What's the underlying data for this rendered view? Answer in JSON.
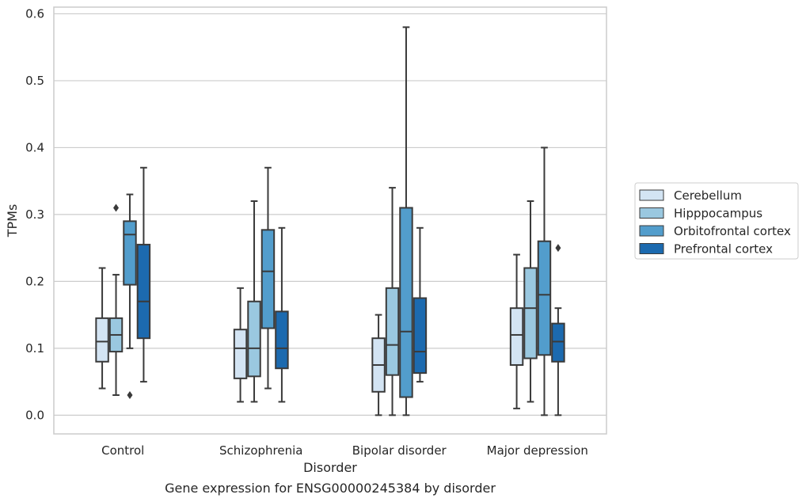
{
  "chart_data": {
    "type": "box",
    "xlabel": "Disorder",
    "ylabel": "TPMs",
    "caption": "Gene expression for ENSG00000245384 by disorder",
    "ylim": [
      -0.028,
      0.61
    ],
    "yticks": [
      "0.0",
      "0.1",
      "0.2",
      "0.3",
      "0.4",
      "0.5",
      "0.6"
    ],
    "yticks_values": [
      0.0,
      0.1,
      0.2,
      0.3,
      0.4,
      0.5,
      0.6
    ],
    "grid": "horizontal",
    "legend_position": "right",
    "categories": [
      "Control",
      "Schizophrenia",
      "Bipolar disorder",
      "Major depression"
    ],
    "series": [
      {
        "name": "Cerebellum",
        "color": "#d3e4f3",
        "boxes": [
          {
            "whislo": 0.04,
            "q1": 0.08,
            "med": 0.11,
            "q3": 0.145,
            "whishi": 0.22,
            "fliers": []
          },
          {
            "whislo": 0.02,
            "q1": 0.055,
            "med": 0.1,
            "q3": 0.128,
            "whishi": 0.19,
            "fliers": []
          },
          {
            "whislo": 0.0,
            "q1": 0.035,
            "med": 0.075,
            "q3": 0.115,
            "whishi": 0.15,
            "fliers": []
          },
          {
            "whislo": 0.01,
            "q1": 0.075,
            "med": 0.12,
            "q3": 0.16,
            "whishi": 0.24,
            "fliers": []
          }
        ]
      },
      {
        "name": "Hipppocampus",
        "color": "#9ac8e0",
        "boxes": [
          {
            "whislo": 0.03,
            "q1": 0.095,
            "med": 0.12,
            "q3": 0.145,
            "whishi": 0.21,
            "fliers": [
              0.31
            ]
          },
          {
            "whislo": 0.02,
            "q1": 0.058,
            "med": 0.1,
            "q3": 0.17,
            "whishi": 0.32,
            "fliers": []
          },
          {
            "whislo": 0.0,
            "q1": 0.06,
            "med": 0.105,
            "q3": 0.19,
            "whishi": 0.34,
            "fliers": []
          },
          {
            "whislo": 0.02,
            "q1": 0.085,
            "med": 0.16,
            "q3": 0.22,
            "whishi": 0.32,
            "fliers": []
          }
        ]
      },
      {
        "name": "Orbitofrontal cortex",
        "color": "#529dcc",
        "boxes": [
          {
            "whislo": 0.1,
            "q1": 0.195,
            "med": 0.27,
            "q3": 0.29,
            "whishi": 0.33,
            "fliers": [
              0.03
            ]
          },
          {
            "whislo": 0.04,
            "q1": 0.13,
            "med": 0.215,
            "q3": 0.277,
            "whishi": 0.37,
            "fliers": []
          },
          {
            "whislo": 0.0,
            "q1": 0.027,
            "med": 0.125,
            "q3": 0.31,
            "whishi": 0.58,
            "fliers": []
          },
          {
            "whislo": 0.0,
            "q1": 0.09,
            "med": 0.18,
            "q3": 0.26,
            "whishi": 0.4,
            "fliers": []
          }
        ]
      },
      {
        "name": "Prefrontal cortex",
        "color": "#1c6aaf",
        "boxes": [
          {
            "whislo": 0.05,
            "q1": 0.115,
            "med": 0.17,
            "q3": 0.255,
            "whishi": 0.37,
            "fliers": []
          },
          {
            "whislo": 0.02,
            "q1": 0.07,
            "med": 0.1,
            "q3": 0.155,
            "whishi": 0.28,
            "fliers": []
          },
          {
            "whislo": 0.05,
            "q1": 0.063,
            "med": 0.095,
            "q3": 0.175,
            "whishi": 0.28,
            "fliers": []
          },
          {
            "whislo": 0.0,
            "q1": 0.08,
            "med": 0.11,
            "q3": 0.137,
            "whishi": 0.16,
            "fliers": [
              0.25
            ]
          }
        ]
      }
    ]
  },
  "colors": {
    "axes_edge": "#cccccc",
    "grid": "#cccccc",
    "box_edge": "#3a3a3a",
    "text": "#262626"
  }
}
